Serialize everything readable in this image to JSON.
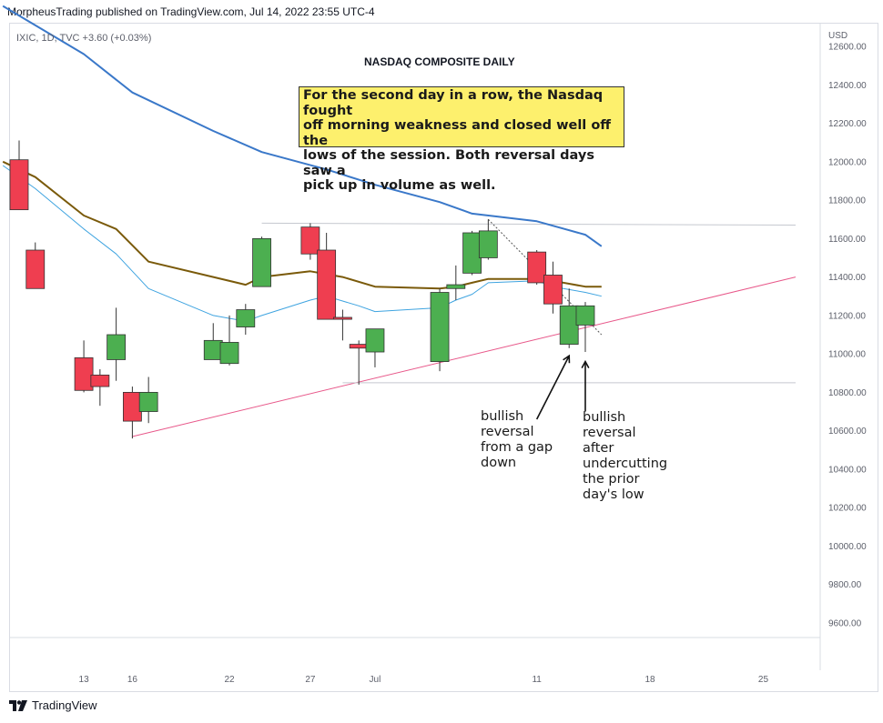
{
  "header": {
    "published_by": "MorpheusTrading published on TradingView.com, Jul 14, 2022 23:55 UTC-4",
    "symbol_legend": "IXIC, 1D, TVC  +3.60 (+0.03%)",
    "currency": "USD"
  },
  "footer": {
    "brand": "TradingView"
  },
  "chart_data": {
    "type": "candlestick",
    "title": "NASDAQ COMPOSITE DAILY",
    "currency": "USD",
    "ylim": [
      9500,
      12850
    ],
    "yticks": [
      9600,
      9800,
      10000,
      10200,
      10400,
      10600,
      10800,
      11000,
      11200,
      11400,
      11600,
      11800,
      12000,
      12200,
      12400,
      12600
    ],
    "yticklabels": [
      "9600.00",
      "9800.00",
      "10000.00",
      "10200.00",
      "10400.00",
      "10600.00",
      "10800.00",
      "11000.00",
      "11200.00",
      "11400.00",
      "11600.00",
      "11800.00",
      "12000.00",
      "12200.00",
      "12400.00",
      "12600.00"
    ],
    "xticks": [
      "2022-06-13",
      "2022-06-16",
      "2022-06-22",
      "2022-06-27",
      "2022-07-01",
      "2022-07-11",
      "2022-07-18",
      "2022-07-25"
    ],
    "xticklabels": [
      "13",
      "16",
      "22",
      "27",
      "Jul",
      "11",
      "18",
      "25"
    ],
    "x_domain": [
      "2022-06-09",
      "2022-07-27"
    ],
    "candles": [
      {
        "date": "2022-06-09",
        "open": 12010,
        "high": 12110,
        "low": 11750,
        "close": 11750
      },
      {
        "date": "2022-06-10",
        "open": 11540,
        "high": 11580,
        "low": 11340,
        "close": 11340
      },
      {
        "date": "2022-06-13",
        "open": 10980,
        "high": 11070,
        "low": 10800,
        "close": 10810
      },
      {
        "date": "2022-06-14",
        "open": 10890,
        "high": 10920,
        "low": 10730,
        "close": 10830
      },
      {
        "date": "2022-06-15",
        "open": 10970,
        "high": 11240,
        "low": 10860,
        "close": 11100
      },
      {
        "date": "2022-06-16",
        "open": 10800,
        "high": 10830,
        "low": 10560,
        "close": 10650
      },
      {
        "date": "2022-06-17",
        "open": 10700,
        "high": 10880,
        "low": 10640,
        "close": 10800
      },
      {
        "date": "2022-06-21",
        "open": 10970,
        "high": 11160,
        "low": 10970,
        "close": 11070
      },
      {
        "date": "2022-06-22",
        "open": 10950,
        "high": 11200,
        "low": 10940,
        "close": 11060
      },
      {
        "date": "2022-06-23",
        "open": 11140,
        "high": 11260,
        "low": 11100,
        "close": 11230
      },
      {
        "date": "2022-06-24",
        "open": 11350,
        "high": 11610,
        "low": 11350,
        "close": 11600
      },
      {
        "date": "2022-06-27",
        "open": 11660,
        "high": 11680,
        "low": 11490,
        "close": 11520
      },
      {
        "date": "2022-06-28",
        "open": 11540,
        "high": 11630,
        "low": 11180,
        "close": 11180
      },
      {
        "date": "2022-06-29",
        "open": 11190,
        "high": 11230,
        "low": 11070,
        "close": 11180
      },
      {
        "date": "2022-06-30",
        "open": 11050,
        "high": 11070,
        "low": 10840,
        "close": 11030
      },
      {
        "date": "2022-07-01",
        "open": 11010,
        "high": 11130,
        "low": 10930,
        "close": 11130
      },
      {
        "date": "2022-07-05",
        "open": 10960,
        "high": 11340,
        "low": 10910,
        "close": 11320
      },
      {
        "date": "2022-07-06",
        "open": 11340,
        "high": 11460,
        "low": 11280,
        "close": 11360
      },
      {
        "date": "2022-07-07",
        "open": 11420,
        "high": 11640,
        "low": 11410,
        "close": 11630
      },
      {
        "date": "2022-07-08",
        "open": 11500,
        "high": 11700,
        "low": 11490,
        "close": 11640
      },
      {
        "date": "2022-07-11",
        "open": 11530,
        "high": 11540,
        "low": 11360,
        "close": 11370
      },
      {
        "date": "2022-07-12",
        "open": 11410,
        "high": 11480,
        "low": 11210,
        "close": 11260
      },
      {
        "date": "2022-07-13",
        "open": 11050,
        "high": 11340,
        "low": 11030,
        "close": 11250
      },
      {
        "date": "2022-07-14",
        "open": 11150,
        "high": 11270,
        "low": 11010,
        "close": 11250
      }
    ],
    "moving_averages": [
      {
        "color": "#3a78c9",
        "width": 2,
        "points": [
          [
            "2022-06-08",
            12810
          ],
          [
            "2022-06-13",
            12560
          ],
          [
            "2022-06-16",
            12360
          ],
          [
            "2022-06-21",
            12160
          ],
          [
            "2022-06-24",
            12050
          ],
          [
            "2022-06-28",
            11960
          ],
          [
            "2022-07-01",
            11880
          ],
          [
            "2022-07-05",
            11790
          ],
          [
            "2022-07-07",
            11730
          ],
          [
            "2022-07-11",
            11690
          ],
          [
            "2022-07-14",
            11620
          ],
          [
            "2022-07-15",
            11560
          ]
        ]
      },
      {
        "color": "#7a5a0a",
        "width": 2,
        "points": [
          [
            "2022-06-08",
            12000
          ],
          [
            "2022-06-10",
            11920
          ],
          [
            "2022-06-13",
            11720
          ],
          [
            "2022-06-15",
            11650
          ],
          [
            "2022-06-17",
            11480
          ],
          [
            "2022-06-21",
            11400
          ],
          [
            "2022-06-23",
            11360
          ],
          [
            "2022-06-24",
            11400
          ],
          [
            "2022-06-27",
            11430
          ],
          [
            "2022-06-29",
            11400
          ],
          [
            "2022-07-01",
            11350
          ],
          [
            "2022-07-05",
            11340
          ],
          [
            "2022-07-06",
            11350
          ],
          [
            "2022-07-07",
            11370
          ],
          [
            "2022-07-08",
            11390
          ],
          [
            "2022-07-11",
            11390
          ],
          [
            "2022-07-12",
            11380
          ],
          [
            "2022-07-14",
            11350
          ],
          [
            "2022-07-15",
            11350
          ]
        ]
      },
      {
        "color": "#3fa4e0",
        "width": 1,
        "points": [
          [
            "2022-06-08",
            11980
          ],
          [
            "2022-06-10",
            11860
          ],
          [
            "2022-06-13",
            11650
          ],
          [
            "2022-06-15",
            11520
          ],
          [
            "2022-06-17",
            11340
          ],
          [
            "2022-06-21",
            11200
          ],
          [
            "2022-06-23",
            11170
          ],
          [
            "2022-06-24",
            11200
          ],
          [
            "2022-06-27",
            11280
          ],
          [
            "2022-06-28",
            11300
          ],
          [
            "2022-06-30",
            11250
          ],
          [
            "2022-07-01",
            11220
          ],
          [
            "2022-07-05",
            11240
          ],
          [
            "2022-07-06",
            11280
          ],
          [
            "2022-07-07",
            11310
          ],
          [
            "2022-07-08",
            11370
          ],
          [
            "2022-07-11",
            11380
          ],
          [
            "2022-07-12",
            11350
          ],
          [
            "2022-07-14",
            11320
          ],
          [
            "2022-07-15",
            11300
          ]
        ]
      }
    ],
    "trendlines": [
      {
        "color": "#e8588a",
        "dash": false,
        "from": [
          "2022-06-16",
          10570
        ],
        "to": [
          "2022-07-27",
          11400
        ]
      },
      {
        "color": "#555555",
        "dash": true,
        "from": [
          "2022-07-08",
          11700
        ],
        "to": [
          "2022-07-15",
          11100
        ]
      },
      {
        "color": "#c5c8cf",
        "dash": false,
        "from": [
          "2022-06-24",
          11680
        ],
        "to": [
          "2022-07-27",
          11670
        ]
      },
      {
        "color": "#c5c8cf",
        "dash": false,
        "from": [
          "2022-06-29",
          10850
        ],
        "to": [
          "2022-07-27",
          10850
        ]
      }
    ],
    "arrows": [
      {
        "from": [
          "2022-07-11",
          10660
        ],
        "to": [
          "2022-07-13",
          10990
        ]
      },
      {
        "from": [
          "2022-07-14",
          10700
        ],
        "to": [
          "2022-07-14",
          10960
        ]
      }
    ],
    "note": "For the second day in a row, the Nasdaq fought\noff morning weakness and closed well off the\nlows of the session.  Both reversal days saw a\npick up in volume as well.",
    "annotations": [
      {
        "text": "bullish\nreversal\nfrom a gap\ndown"
      },
      {
        "text": "bullish\nreversal\nafter\nundercutting\nthe prior\nday's low"
      }
    ],
    "colors": {
      "up": "#4caf50",
      "down": "#ef3e50",
      "wick": "#333333"
    }
  }
}
